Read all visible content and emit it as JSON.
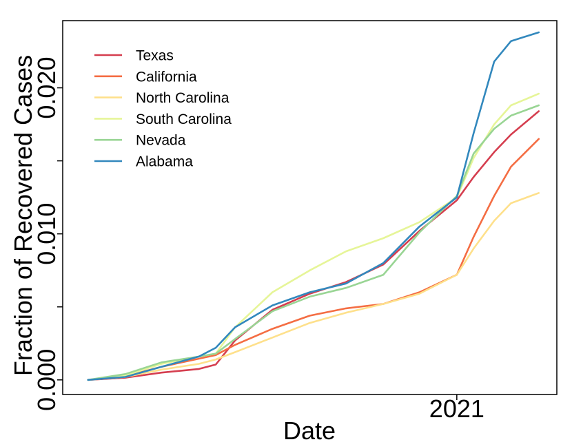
{
  "chart_data": {
    "type": "line",
    "title": "",
    "xlabel": "Date",
    "ylabel": "Fraction of Recovered Cases",
    "x_range": [
      "2020-03-01",
      "2021-03-10"
    ],
    "xlim": [
      "2020-02-09",
      "2021-03-25"
    ],
    "ylim": [
      -0.001,
      0.0246
    ],
    "y_ticks": [
      0.0,
      0.005,
      0.01,
      0.015,
      0.02
    ],
    "y_tick_labels": [
      "0.000",
      "",
      "0.010",
      "",
      "0.020"
    ],
    "x_ticks": [
      "2021-01-01"
    ],
    "x_tick_labels": [
      "2021"
    ],
    "grid": false,
    "legend_position": "top-left",
    "x": [
      "2020-03-01",
      "2020-04-01",
      "2020-05-01",
      "2020-06-01",
      "2020-06-15",
      "2020-07-01",
      "2020-08-01",
      "2020-09-01",
      "2020-10-01",
      "2020-11-01",
      "2020-12-01",
      "2021-01-01",
      "2021-01-15",
      "2021-02-01",
      "2021-02-15",
      "2021-03-10"
    ],
    "series": [
      {
        "name": "Texas",
        "color": "#d53e4f",
        "values": [
          0,
          0.00015,
          0.0005,
          0.00075,
          0.00105,
          0.0027,
          0.0048,
          0.0059,
          0.0067,
          0.0079,
          0.0102,
          0.0123,
          0.0139,
          0.0156,
          0.0168,
          0.0184
        ]
      },
      {
        "name": "California",
        "color": "#f46d43",
        "values": [
          0,
          0.00025,
          0.0009,
          0.00145,
          0.0017,
          0.0024,
          0.0035,
          0.0044,
          0.0049,
          0.0052,
          0.006,
          0.0072,
          0.0098,
          0.0126,
          0.0146,
          0.0165
        ]
      },
      {
        "name": "North Carolina",
        "color": "#fee08b",
        "values": [
          0,
          0.0002,
          0.0007,
          0.0011,
          0.0014,
          0.0019,
          0.0029,
          0.0039,
          0.0046,
          0.0052,
          0.0059,
          0.0072,
          0.009,
          0.0109,
          0.0121,
          0.0128
        ]
      },
      {
        "name": "South Carolina",
        "color": "#e6f598",
        "values": [
          0,
          0.0003,
          0.0011,
          0.0016,
          0.0018,
          0.0036,
          0.006,
          0.0075,
          0.0088,
          0.0097,
          0.0108,
          0.0125,
          0.0152,
          0.0175,
          0.0188,
          0.0196
        ]
      },
      {
        "name": "Nevada",
        "color": "#99d594",
        "values": [
          0,
          0.0004,
          0.0012,
          0.0016,
          0.0018,
          0.0028,
          0.0047,
          0.0057,
          0.0063,
          0.0072,
          0.0101,
          0.0126,
          0.0155,
          0.0172,
          0.0181,
          0.0188
        ]
      },
      {
        "name": "Alabama",
        "color": "#3288bd",
        "values": [
          0,
          0.0002,
          0.0009,
          0.0016,
          0.0022,
          0.0036,
          0.0051,
          0.006,
          0.0066,
          0.008,
          0.0105,
          0.0125,
          0.0169,
          0.0218,
          0.0232,
          0.0238
        ]
      }
    ]
  }
}
